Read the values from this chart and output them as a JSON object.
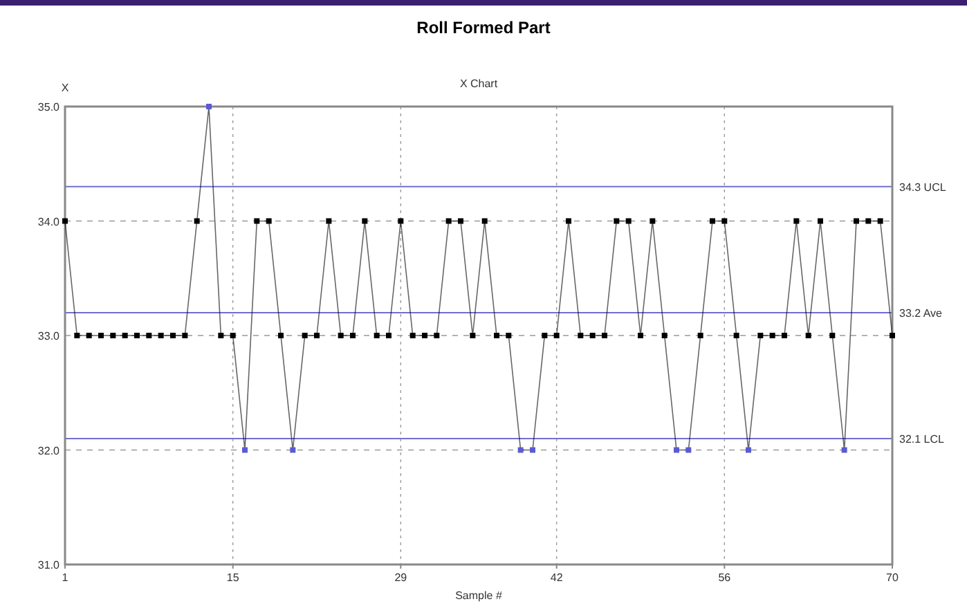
{
  "chart_data": {
    "type": "line",
    "title": "Roll Formed Part",
    "subtitle": "X Chart",
    "xlabel": "Sample #",
    "ylabel": "X",
    "x": [
      1,
      2,
      3,
      4,
      5,
      6,
      7,
      8,
      9,
      10,
      11,
      12,
      13,
      14,
      15,
      16,
      17,
      18,
      19,
      20,
      21,
      22,
      23,
      24,
      25,
      26,
      27,
      28,
      29,
      30,
      31,
      32,
      33,
      34,
      35,
      36,
      37,
      38,
      39,
      40,
      41,
      42,
      43,
      44,
      45,
      46,
      47,
      48,
      49,
      50,
      51,
      52,
      53,
      54,
      55,
      56,
      57,
      58,
      59,
      60,
      61,
      62,
      63,
      64,
      65,
      66,
      67,
      68,
      69,
      70
    ],
    "series": [
      {
        "color": "#000000",
        "values": [
          34,
          33,
          33,
          33,
          33,
          33,
          33,
          33,
          33,
          33,
          33,
          34,
          35,
          33,
          33,
          32,
          34,
          34,
          33,
          32,
          33,
          33,
          34,
          33,
          33,
          34,
          33,
          33,
          34,
          33,
          33,
          33,
          34,
          34,
          33,
          34,
          33,
          33,
          32,
          32,
          33,
          33,
          34,
          33,
          33,
          33,
          34,
          34,
          33,
          34,
          33,
          32,
          32,
          33,
          34,
          34,
          33,
          32,
          33,
          33,
          33,
          34,
          33,
          34,
          33,
          32,
          34,
          34,
          34,
          33
        ],
        "colors": [
          "#000000",
          "#000000",
          "#000000",
          "#000000",
          "#000000",
          "#000000",
          "#000000",
          "#000000",
          "#000000",
          "#000000",
          "#000000",
          "#000000",
          "#5a5ad2",
          "#000000",
          "#000000",
          "#5a5ad2",
          "#000000",
          "#000000",
          "#000000",
          "#5a5ad2",
          "#000000",
          "#000000",
          "#000000",
          "#000000",
          "#000000",
          "#000000",
          "#000000",
          "#000000",
          "#000000",
          "#000000",
          "#000000",
          "#000000",
          "#000000",
          "#000000",
          "#000000",
          "#000000",
          "#000000",
          "#000000",
          "#5a5ad2",
          "#5a5ad2",
          "#000000",
          "#000000",
          "#000000",
          "#000000",
          "#000000",
          "#000000",
          "#000000",
          "#000000",
          "#000000",
          "#000000",
          "#000000",
          "#5a5ad2",
          "#5a5ad2",
          "#000000",
          "#000000",
          "#000000",
          "#000000",
          "#5a5ad2",
          "#000000",
          "#000000",
          "#000000",
          "#000000",
          "#000000",
          "#000000",
          "#000000",
          "#5a5ad2",
          "#000000",
          "#000000",
          "#000000",
          "#000000"
        ]
      }
    ],
    "xlim": [
      1,
      70
    ],
    "xticks": [
      1,
      15,
      29,
      42,
      56,
      70
    ],
    "ylim": [
      31,
      35
    ],
    "yticks": [
      {
        "value": 31,
        "label": "31.0"
      },
      {
        "value": 32,
        "label": "32.0"
      },
      {
        "value": 33,
        "label": "33.0"
      },
      {
        "value": 34,
        "label": "34.0"
      },
      {
        "value": 35,
        "label": "35.0"
      }
    ],
    "ref_lines": [
      {
        "axis": "y",
        "value": 34.3,
        "label": "34.3 UCL",
        "color": "#6f6fd0"
      },
      {
        "axis": "y",
        "value": 33.2,
        "label": "33.2 Ave",
        "color": "#6f6fd0"
      },
      {
        "axis": "y",
        "value": 32.1,
        "label": "32.1 LCL",
        "color": "#6f6fd0"
      }
    ],
    "grid": true,
    "marker": "square",
    "line_style": "solid"
  }
}
